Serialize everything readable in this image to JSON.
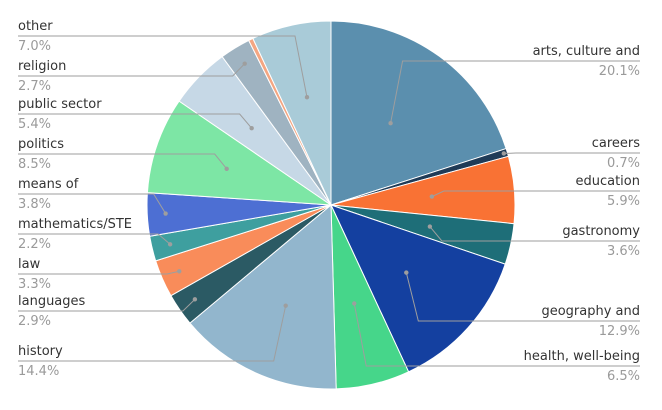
{
  "chart_data": {
    "type": "pie",
    "title": "",
    "start_angle_deg": 0,
    "direction": "clockwise",
    "slices": [
      {
        "name": "arts, culture and",
        "pct_label": "20.1%",
        "value": 20.1,
        "color": "#5b8fae",
        "side": "right"
      },
      {
        "name": "careers",
        "pct_label": "0.7%",
        "value": 0.7,
        "color": "#1f3b57",
        "side": "right"
      },
      {
        "name": "education",
        "pct_label": "5.9%",
        "value": 5.9,
        "color": "#f97234",
        "side": "right"
      },
      {
        "name": "gastronomy",
        "pct_label": "3.6%",
        "value": 3.6,
        "color": "#1e6e78",
        "side": "right"
      },
      {
        "name": "geography and",
        "pct_label": "12.9%",
        "value": 12.9,
        "color": "#1440a0",
        "side": "right"
      },
      {
        "name": "health, well-being",
        "pct_label": "6.5%",
        "value": 6.5,
        "color": "#46d68a",
        "side": "right"
      },
      {
        "name": "history",
        "pct_label": "14.4%",
        "value": 14.4,
        "color": "#92b6cd",
        "side": "left"
      },
      {
        "name": "languages",
        "pct_label": "2.9%",
        "value": 2.9,
        "color": "#2b5a64",
        "side": "left"
      },
      {
        "name": "law",
        "pct_label": "3.3%",
        "value": 3.3,
        "color": "#f98c5a",
        "side": "left"
      },
      {
        "name": "mathematics/STE",
        "pct_label": "2.2%",
        "value": 2.2,
        "color": "#3e9f9f",
        "side": "left"
      },
      {
        "name": "means of",
        "pct_label": "3.8%",
        "value": 3.8,
        "color": "#4d6fd3",
        "side": "left"
      },
      {
        "name": "politics",
        "pct_label": "8.5%",
        "value": 8.5,
        "color": "#7de6a5",
        "side": "left"
      },
      {
        "name": "public sector",
        "pct_label": "5.4%",
        "value": 5.4,
        "color": "#c6d8e6",
        "side": "left"
      },
      {
        "name": "religion",
        "pct_label": "2.7%",
        "value": 2.7,
        "color": "#9fb3c1",
        "side": "left"
      },
      {
        "name": "",
        "pct_label": "",
        "value": 0.4,
        "color": "#f4a682",
        "side": "none"
      },
      {
        "name": "other",
        "pct_label": "7.0%",
        "value": 7.0,
        "color": "#a9cbd8",
        "side": "left"
      }
    ]
  }
}
